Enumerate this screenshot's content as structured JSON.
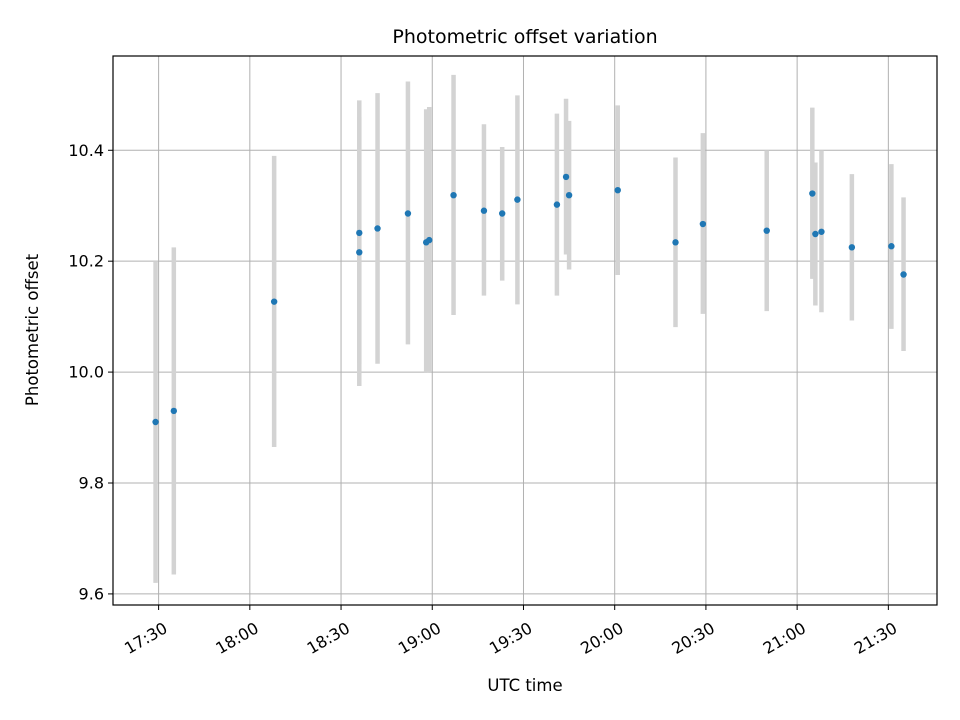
{
  "chart_data": {
    "type": "scatter",
    "title": "Photometric offset variation",
    "xlabel": "UTC time",
    "ylabel": "Photometric offset",
    "x_unit": "UTC time (HH:MM)",
    "xlim": [
      "17:15",
      "21:46"
    ],
    "ylim": [
      9.58,
      10.57
    ],
    "grid": true,
    "colors": {
      "point": "#1f77b4",
      "errorbar": "#d3d3d3",
      "grid": "#b0b0b0"
    },
    "x_ticks": [
      "17:30",
      "18:00",
      "18:30",
      "19:00",
      "19:30",
      "20:00",
      "20:30",
      "21:00",
      "21:30"
    ],
    "y_ticks": [
      9.6,
      9.8,
      10.0,
      10.2,
      10.4
    ],
    "y_tick_labels": [
      "9.6",
      "9.8",
      "10.0",
      "10.2",
      "10.4"
    ],
    "points": [
      {
        "x": "17:29",
        "y": 9.91,
        "low": 9.62,
        "high": 10.2
      },
      {
        "x": "17:35",
        "y": 9.93,
        "low": 9.635,
        "high": 10.225
      },
      {
        "x": "18:08",
        "y": 10.127,
        "low": 9.865,
        "high": 10.39
      },
      {
        "x": "18:36",
        "y": 10.251,
        "low": 10.015,
        "high": 10.49
      },
      {
        "x": "18:36",
        "y": 10.216,
        "low": 9.975,
        "high": 10.46
      },
      {
        "x": "18:42",
        "y": 10.259,
        "low": 10.015,
        "high": 10.503
      },
      {
        "x": "18:52",
        "y": 10.286,
        "low": 10.05,
        "high": 10.524
      },
      {
        "x": "18:58",
        "y": 10.234,
        "low": 10.0,
        "high": 10.474
      },
      {
        "x": "18:59",
        "y": 10.238,
        "low": 10.0,
        "high": 10.478
      },
      {
        "x": "19:07",
        "y": 10.319,
        "low": 10.103,
        "high": 10.536
      },
      {
        "x": "19:17",
        "y": 10.291,
        "low": 10.138,
        "high": 10.447
      },
      {
        "x": "19:23",
        "y": 10.286,
        "low": 10.165,
        "high": 10.406
      },
      {
        "x": "19:28",
        "y": 10.311,
        "low": 10.122,
        "high": 10.499
      },
      {
        "x": "19:41",
        "y": 10.302,
        "low": 10.138,
        "high": 10.466
      },
      {
        "x": "19:44",
        "y": 10.352,
        "low": 10.212,
        "high": 10.493
      },
      {
        "x": "19:45",
        "y": 10.319,
        "low": 10.185,
        "high": 10.453
      },
      {
        "x": "20:01",
        "y": 10.328,
        "low": 10.175,
        "high": 10.481
      },
      {
        "x": "20:20",
        "y": 10.234,
        "low": 10.081,
        "high": 10.387
      },
      {
        "x": "20:29",
        "y": 10.267,
        "low": 10.105,
        "high": 10.431
      },
      {
        "x": "20:50",
        "y": 10.255,
        "low": 10.11,
        "high": 10.4
      },
      {
        "x": "21:05",
        "y": 10.322,
        "low": 10.168,
        "high": 10.477
      },
      {
        "x": "21:06",
        "y": 10.249,
        "low": 10.12,
        "high": 10.378
      },
      {
        "x": "21:08",
        "y": 10.253,
        "low": 10.108,
        "high": 10.4
      },
      {
        "x": "21:18",
        "y": 10.225,
        "low": 10.093,
        "high": 10.357
      },
      {
        "x": "21:31",
        "y": 10.227,
        "low": 10.078,
        "high": 10.375
      },
      {
        "x": "21:35",
        "y": 10.176,
        "low": 10.038,
        "high": 10.315
      }
    ]
  }
}
